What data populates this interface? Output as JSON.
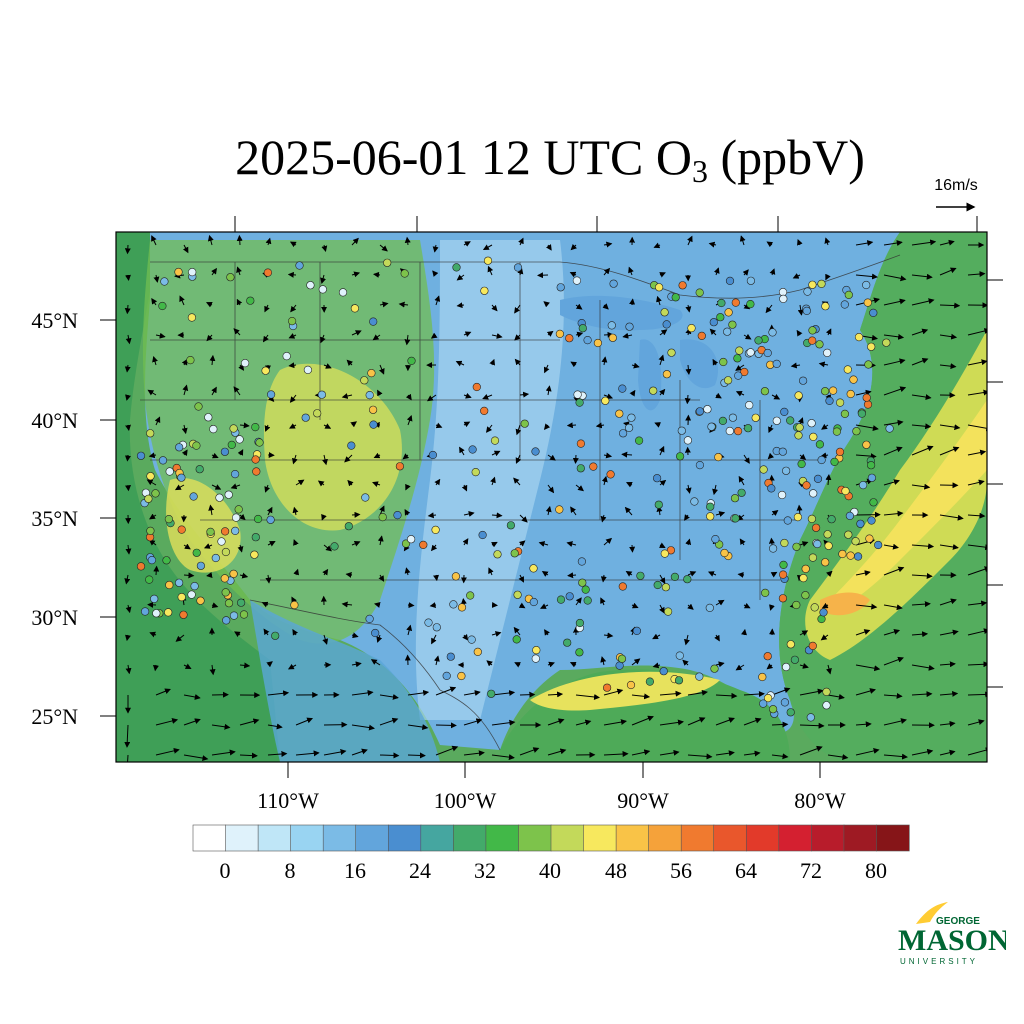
{
  "title": {
    "main": "2025-06-01 12 UTC O",
    "sub": "3",
    "unit": " (ppbV)"
  },
  "reference_vector": {
    "label": "16m/s"
  },
  "axes": {
    "lat_labels": [
      "45°N",
      "40°N",
      "35°N",
      "30°N",
      "25°N"
    ],
    "lon_labels": [
      "110°W",
      "100°W",
      "90°W",
      "80°W"
    ]
  },
  "colorbar": {
    "labels": [
      "0",
      "8",
      "16",
      "24",
      "32",
      "40",
      "48",
      "56",
      "64",
      "72",
      "80"
    ],
    "colors": [
      "#ffffff",
      "#dff2fb",
      "#bfe6f7",
      "#99d4f2",
      "#7bbbe6",
      "#62a5dc",
      "#4a8ed0",
      "#45a6a0",
      "#43aa6a",
      "#42b848",
      "#7dc34b",
      "#c3d95a",
      "#f7e85e",
      "#f9c347",
      "#f5a23a",
      "#f07a2f",
      "#e9572c",
      "#e23a2a",
      "#d42030",
      "#b81c2b",
      "#9e1a23",
      "#861518"
    ]
  },
  "logo": {
    "line1": "GEORGE",
    "line2": "MASON",
    "line3": "UNIVERSITY",
    "color": "#006633",
    "accent": "#ffcc33"
  },
  "map_layers": {
    "fill": "ozone-concentration-field",
    "points": "monitoring-site-markers",
    "arrows": "wind-vectors",
    "lines": "state-and-country-borders"
  }
}
